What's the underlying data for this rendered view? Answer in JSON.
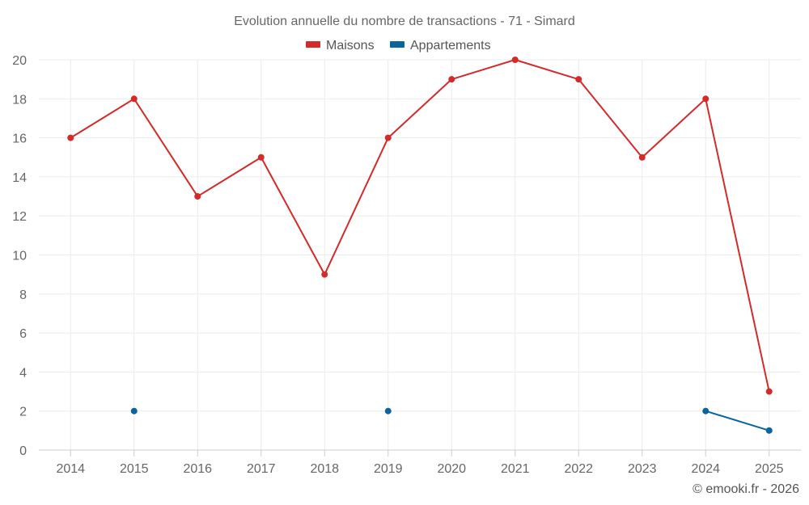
{
  "chart_data": {
    "type": "line",
    "title": "Evolution annuelle du nombre de transactions - 71 - Simard",
    "xlabel": "",
    "ylabel": "",
    "categories": [
      "2014",
      "2015",
      "2016",
      "2017",
      "2018",
      "2019",
      "2020",
      "2021",
      "2022",
      "2023",
      "2024",
      "2025"
    ],
    "ylim": [
      0,
      20
    ],
    "yticks": [
      0,
      2,
      4,
      6,
      8,
      10,
      12,
      14,
      16,
      18,
      20
    ],
    "grid": true,
    "legend_position": "top-center",
    "series": [
      {
        "name": "Maisons",
        "color": "#d42a2a",
        "values": [
          16,
          18,
          13,
          15,
          9,
          16,
          19,
          20,
          19,
          15,
          18,
          3
        ]
      },
      {
        "name": "Appartements",
        "color": "#0a64a0",
        "values": [
          null,
          2,
          null,
          null,
          null,
          2,
          null,
          null,
          null,
          null,
          2,
          1
        ]
      }
    ]
  },
  "credit": "© emooki.fr - 2026"
}
